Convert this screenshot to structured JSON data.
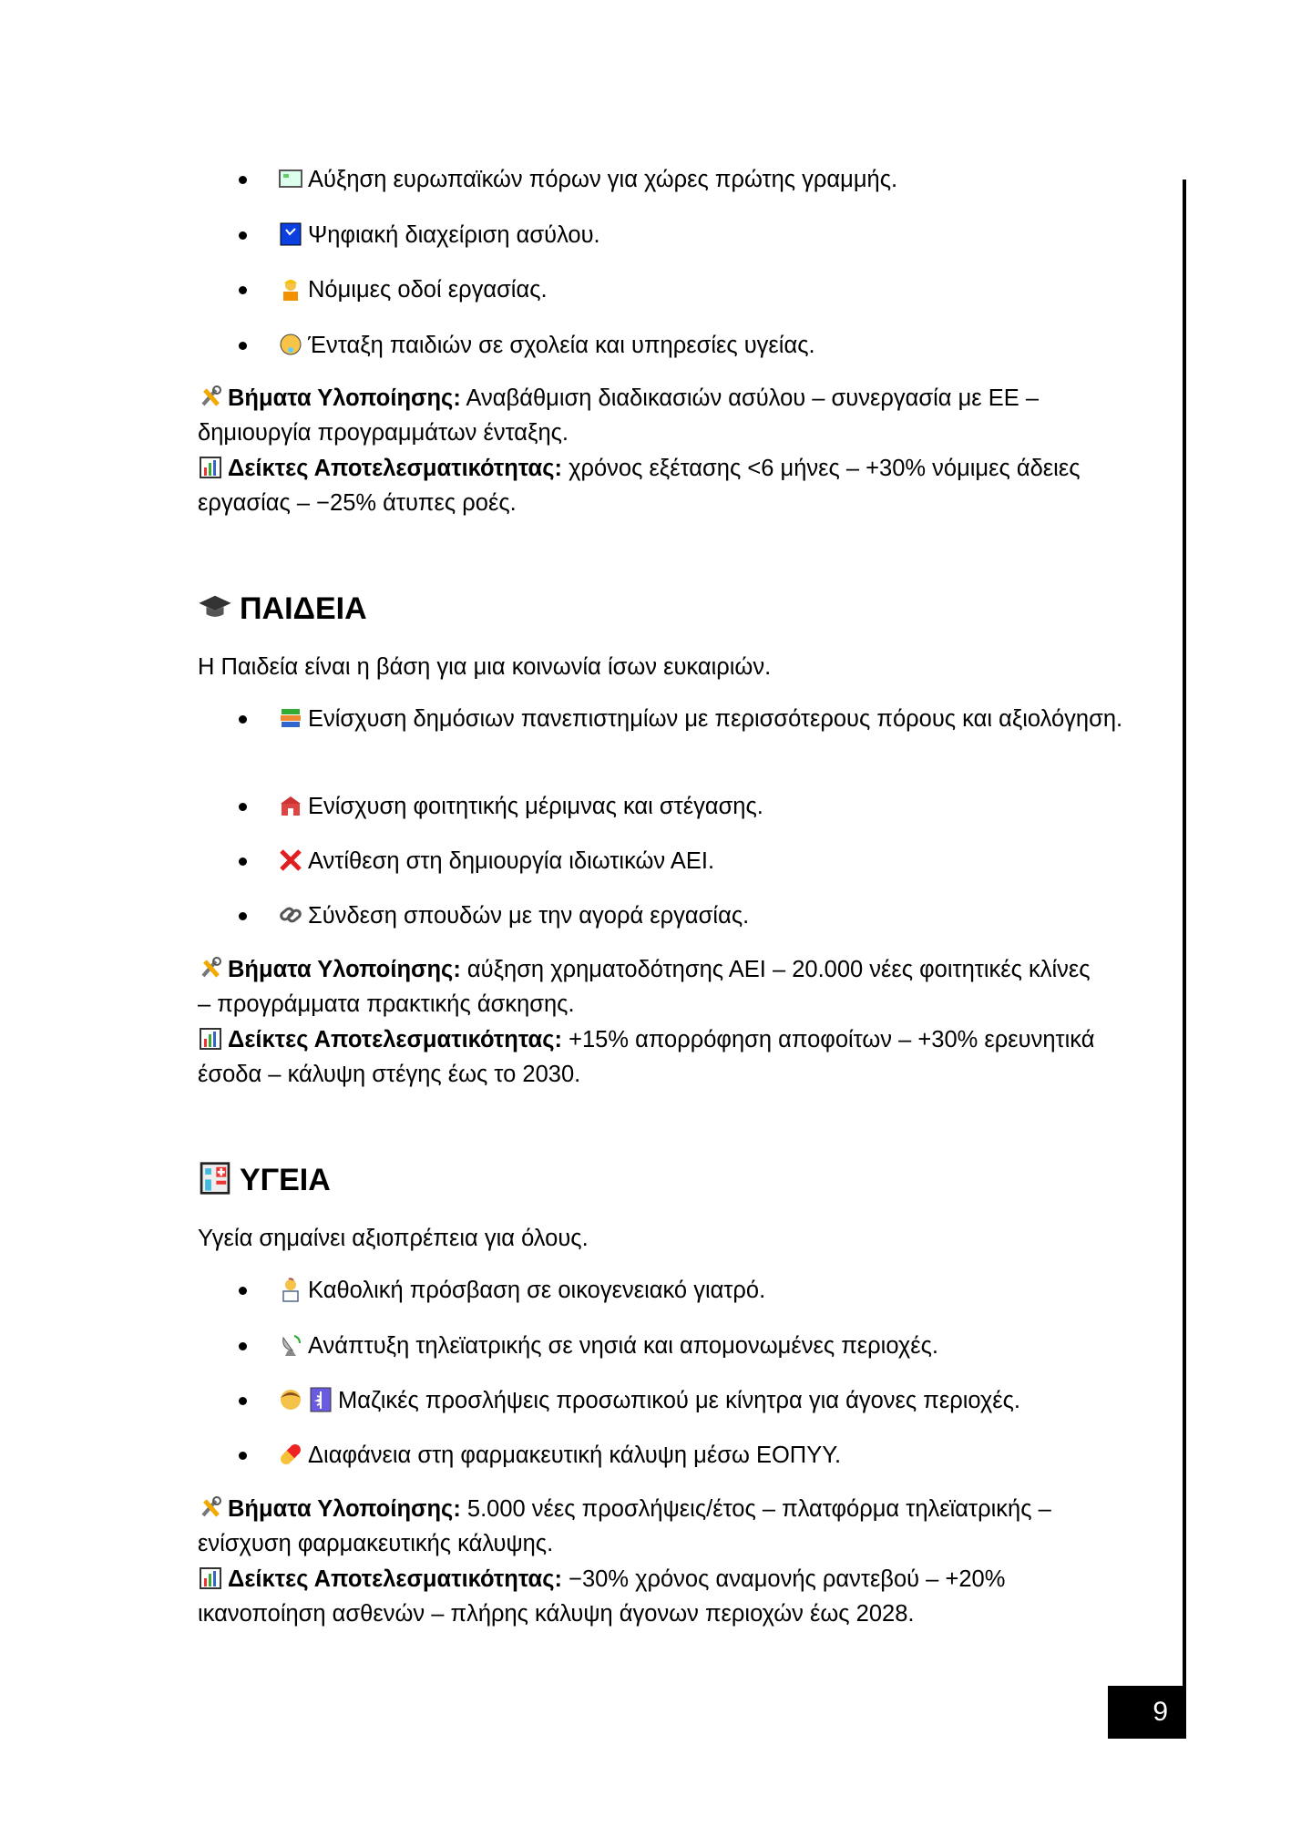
{
  "migration": {
    "bullets": [
      {
        "icon": "map-icon",
        "text": "Αύξηση ευρωπαϊκών πόρων για χώρες πρώτης γραμμής."
      },
      {
        "icon": "digital-passport-icon",
        "text": "Ψηφιακή διαχείριση ασύλου."
      },
      {
        "icon": "worker-icon",
        "text": "Νόμιμες οδοί εργασίας."
      },
      {
        "icon": "baby-icon",
        "text": "Ένταξη παιδιών σε σχολεία και υπηρεσίες υγείας."
      }
    ],
    "steps_label": "Βήματα Υλοποίησης:",
    "steps_text": "Αναβάθμιση διαδικασιών ασύλου – συνεργασία με ΕΕ – δημιουργία προγραμμάτων ένταξης.",
    "indicators_label": "Δείκτες Αποτελεσματικότητας:",
    "indicators_text": "χρόνος εξέτασης <6 μήνες – +30% νόμιμες άδειες εργασίας – −25% άτυπες ροές."
  },
  "education": {
    "title": "ΠΑΙΔΕΙΑ",
    "title_icon": "graduation-cap-icon",
    "intro": "Η Παιδεία είναι η βάση για μια κοινωνία ίσων ευκαιριών.",
    "bullets": [
      {
        "icon": "books-icon",
        "text": "Ενίσχυση δημόσιων πανεπιστημίων με περισσότερους πόρους και αξιολόγηση."
      },
      {
        "icon": "school-icon",
        "text": "Ενίσχυση φοιτητικής μέριμνας και στέγασης."
      },
      {
        "icon": "cross-mark-icon",
        "text": "Αντίθεση στη δημιουργία ιδιωτικών ΑΕΙ."
      },
      {
        "icon": "link-icon",
        "text": "Σύνδεση σπουδών με την αγορά εργασίας."
      }
    ],
    "steps_label": "Βήματα Υλοποίησης:",
    "steps_text": "αύξηση χρηματοδότησης ΑΕΙ – 20.000 νέες φοιτητικές κλίνες – προγράμματα πρακτικής άσκησης.",
    "indicators_label": "Δείκτες Αποτελεσματικότητας:",
    "indicators_text": "+15% απορρόφηση αποφοίτων – +30% ερευνητικά έσοδα – κάλυψη στέγης έως το 2030."
  },
  "health": {
    "title": "ΥΓΕΙΑ",
    "title_icon": "hospital-icon",
    "intro": "Υγεία σημαίνει αξιοπρέπεια για όλους.",
    "bullets": [
      {
        "icon": "doctor-icon",
        "text": "Καθολική πρόσβαση σε οικογενειακό γιατρό."
      },
      {
        "icon": "satellite-antenna-icon",
        "text": "Ανάπτυξη τηλεϊατρικής σε νησιά και απομονωμένες περιοχές."
      },
      {
        "icon": "person-medical-icon",
        "text": "Μαζικές προσλήψεις προσωπικού με κίνητρα για άγονες περιοχές."
      },
      {
        "icon": "pill-icon",
        "text": "Διαφάνεια στη φαρμακευτική κάλυψη μέσω ΕΟΠΥΥ."
      }
    ],
    "steps_label": "Βήματα Υλοποίησης:",
    "steps_text": "5.000 νέες προσλήψεις/έτος – πλατφόρμα τηλεϊατρικής – ενίσχυση φαρμακευτικής κάλυψης.",
    "indicators_label": "Δείκτες Αποτελεσματικότητας:",
    "indicators_text": "−30% χρόνος αναμονής ραντεβού – +20% ικανοποίηση ασθενών – πλήρης κάλυψη άγονων περιοχών έως 2028."
  },
  "page_number": "9"
}
